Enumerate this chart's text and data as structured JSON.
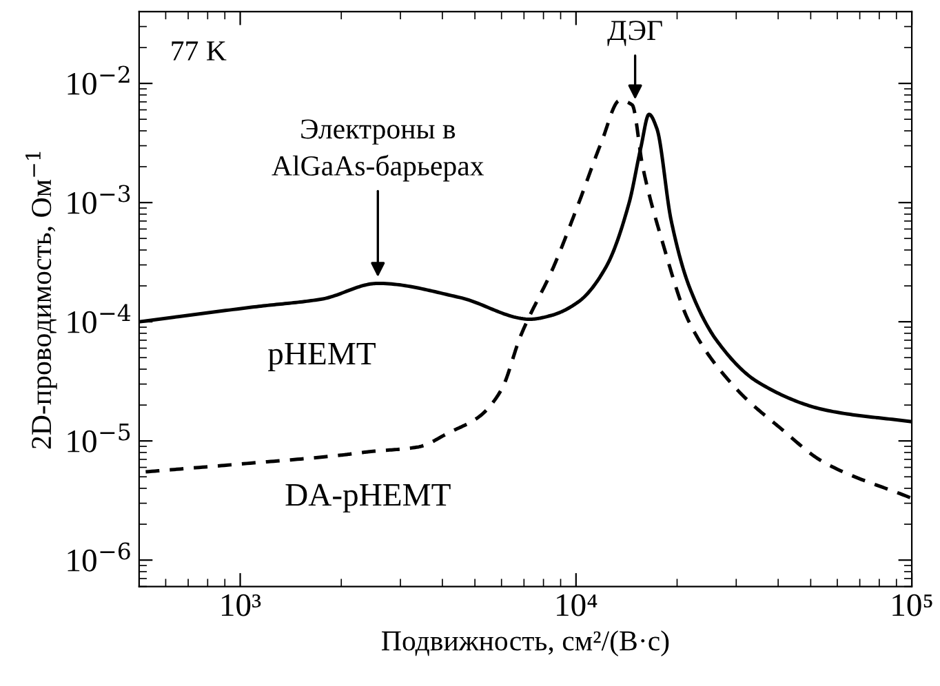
{
  "chart_data": {
    "type": "line",
    "xlabel": "Подвижность, см²/(В·с)",
    "ylabel": "2D-проводимость, Ом$^{−1}$",
    "log": "xy",
    "xlim": [
      500,
      100000
    ],
    "ylim": [
      6e-07,
      0.04
    ],
    "xticks": [
      {
        "value": 1000,
        "label": "10³"
      },
      {
        "value": 10000,
        "label": "10⁴"
      },
      {
        "value": 100000,
        "label": "10⁵"
      }
    ],
    "yticks": [
      {
        "value": 1e-06,
        "label": "10$^{−6}$"
      },
      {
        "value": 1e-05,
        "label": "10$^{−5}$"
      },
      {
        "value": 0.0001,
        "label": "10$^{−4}$"
      },
      {
        "value": 0.001,
        "label": "10$^{−3}$"
      },
      {
        "value": 0.01,
        "label": "10$^{−2}$"
      }
    ],
    "grid": false,
    "legend": false,
    "series": [
      {
        "name": "pHEMT",
        "color": "#000000",
        "line_style": "solid",
        "x": [
          500,
          1120,
          1750,
          2570,
          4500,
          7300,
          8440,
          10200,
          12300,
          14400,
          15600,
          16500,
          17400,
          19200,
          21700,
          26300,
          34900,
          56100,
          100000
        ],
        "values": [
          0.0001,
          0.000134,
          0.000155,
          0.00021,
          0.00016,
          0.000105,
          0.000113,
          0.000148,
          0.00029,
          0.001,
          0.0029,
          0.0055,
          0.0042,
          0.00071,
          0.0002,
          6.9e-05,
          3.1e-05,
          1.8e-05,
          1.45e-05
        ]
      },
      {
        "name": "DA-pHEMT",
        "color": "#000000",
        "line_style": "dashed",
        "x": [
          523,
          1000,
          2000,
          2400,
          3390,
          4200,
          5150,
          6000,
          6840,
          8580,
          10200,
          11900,
          13500,
          14700,
          15800,
          18000,
          21700,
          29800,
          40900,
          54300,
          100000
        ],
        "values": [
          5.5e-06,
          6.4e-06,
          7.6e-06,
          8.1e-06,
          8.9e-06,
          1.18e-05,
          1.6e-05,
          2.7e-05,
          7.6e-05,
          0.00029,
          0.001,
          0.0032,
          0.0072,
          0.0066,
          0.002,
          0.00049,
          0.0001,
          2.8e-05,
          1.26e-05,
          6.7e-06,
          3.3e-06
        ]
      }
    ],
    "annotations": [
      "77 K",
      {
        "text": "ДЭГ",
        "x": 15000,
        "y": 0.0068
      },
      {
        "text": "Электроны в\nAlGaAs-барьерах",
        "x": 2570,
        "y": 0.00022
      }
    ]
  }
}
